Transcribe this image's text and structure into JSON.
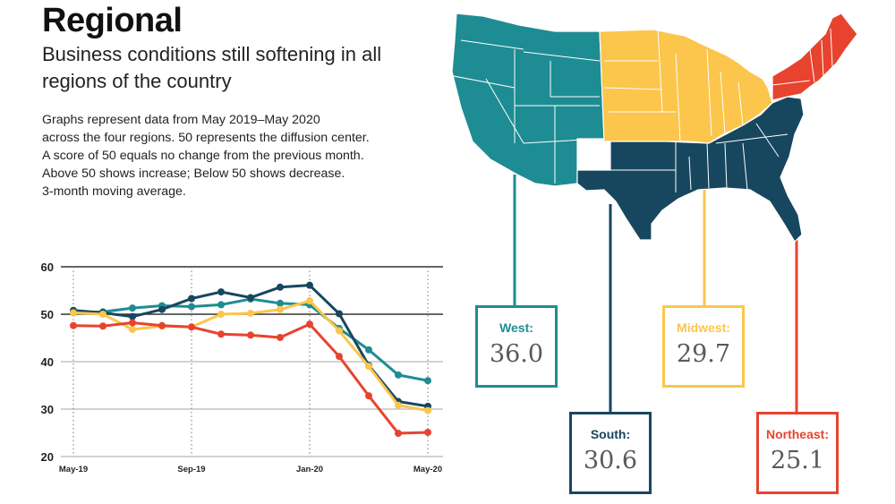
{
  "header": {
    "title": "Regional",
    "subtitle_lines": [
      "Business conditions still softening in all",
      "regions of the country"
    ],
    "description_lines": [
      "Graphs represent data from May 2019–May 2020",
      "across the four regions. 50 represents the diffusion center.",
      "A score of 50 equals no change from the previous month.",
      "Above 50 shows increase; Below 50 shows decrease.",
      "3-month moving average."
    ]
  },
  "colors": {
    "west": "#1e8c93",
    "south": "#17475e",
    "midwest": "#fcc54b",
    "northeast": "#e8432f",
    "grid": "#b8b8b8",
    "axis": "#333333"
  },
  "chart_data": {
    "type": "line",
    "title": "",
    "xlabel": "",
    "ylabel": "",
    "x": [
      "May-19",
      "Jun-19",
      "Jul-19",
      "Aug-19",
      "Sep-19",
      "Oct-19",
      "Nov-19",
      "Dec-19",
      "Jan-20",
      "Feb-20",
      "Mar-20",
      "Apr-20",
      "May-20"
    ],
    "x_tick_labels": [
      "May-19",
      "Sep-19",
      "Jan-20",
      "May-20"
    ],
    "y_ticks": [
      20,
      30,
      40,
      50,
      60
    ],
    "ylim": [
      20,
      60
    ],
    "grid": true,
    "series": [
      {
        "name": "West",
        "color": "#1e8c93",
        "values": [
          50.3,
          50.5,
          51.3,
          51.8,
          51.6,
          52.0,
          53.2,
          52.3,
          52.0,
          47.0,
          42.5,
          37.2,
          36.0
        ]
      },
      {
        "name": "South",
        "color": "#17475e",
        "values": [
          50.8,
          50.3,
          49.5,
          51.0,
          53.3,
          54.7,
          53.5,
          55.7,
          56.1,
          50.1,
          39.2,
          31.6,
          30.6
        ]
      },
      {
        "name": "Midwest",
        "color": "#fcc54b",
        "values": [
          50.3,
          50.0,
          46.8,
          47.5,
          47.3,
          50.0,
          50.2,
          51.0,
          52.8,
          46.5,
          39.0,
          30.8,
          29.7
        ]
      },
      {
        "name": "Northeast",
        "color": "#e8432f",
        "values": [
          47.6,
          47.5,
          48.2,
          47.6,
          47.3,
          45.8,
          45.6,
          45.1,
          47.9,
          41.1,
          32.8,
          24.9,
          25.1
        ]
      }
    ]
  },
  "callouts": [
    {
      "label": "West:",
      "value": "36.0"
    },
    {
      "label": "South:",
      "value": "30.6"
    },
    {
      "label": "Midwest:",
      "value": "29.7"
    },
    {
      "label": "Northeast:",
      "value": "25.1"
    }
  ]
}
